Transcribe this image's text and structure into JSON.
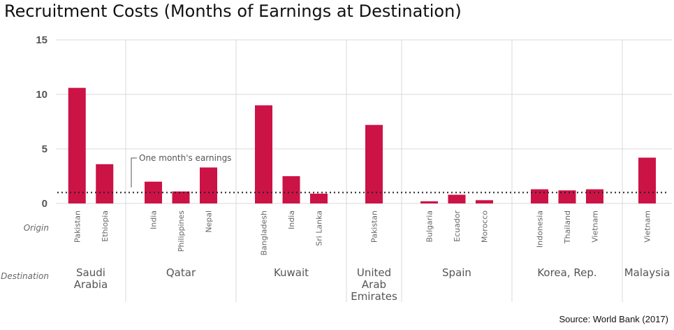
{
  "title": "Recruitment Costs (Months of Earnings at Destination)",
  "source": "Source: World Bank (2017)",
  "colors": {
    "bar": "#cc1346",
    "grid": "#d9d9d9",
    "reference": "#222222"
  },
  "chart_data": {
    "type": "bar",
    "ylim": [
      0,
      15
    ],
    "yticks": [
      0,
      5,
      10,
      15
    ],
    "grid": true,
    "row_labels": {
      "origin": "Origin",
      "destination": "Destination"
    },
    "reference_line": {
      "value": 1,
      "label": "One month's earnings"
    },
    "groups": [
      {
        "destination": [
          "Saudi",
          "Arabia"
        ],
        "bars": [
          {
            "origin": "Pakistan",
            "value": 10.6
          },
          {
            "origin": "Ethiopia",
            "value": 3.6
          }
        ]
      },
      {
        "destination": [
          "Qatar"
        ],
        "bars": [
          {
            "origin": "India",
            "value": 2.0
          },
          {
            "origin": "Philippines",
            "value": 1.1
          },
          {
            "origin": "Nepal",
            "value": 3.3
          }
        ]
      },
      {
        "destination": [
          "Kuwait"
        ],
        "bars": [
          {
            "origin": "Bangladesh",
            "value": 9.0
          },
          {
            "origin": "India",
            "value": 2.5
          },
          {
            "origin": "Sri Lanka",
            "value": 0.9
          }
        ]
      },
      {
        "destination": [
          "United",
          "Arab",
          "Emirates"
        ],
        "bars": [
          {
            "origin": "Pakistan",
            "value": 7.2
          }
        ]
      },
      {
        "destination": [
          "Spain"
        ],
        "bars": [
          {
            "origin": "Bulgaria",
            "value": 0.2
          },
          {
            "origin": "Ecuador",
            "value": 0.8
          },
          {
            "origin": "Morocco",
            "value": 0.3
          }
        ]
      },
      {
        "destination": [
          "Korea, Rep."
        ],
        "bars": [
          {
            "origin": "Indonesia",
            "value": 1.3
          },
          {
            "origin": "Thailand",
            "value": 1.2
          },
          {
            "origin": "Vietnam",
            "value": 1.3
          }
        ]
      },
      {
        "destination": [
          "Malaysia"
        ],
        "bars": [
          {
            "origin": "Vietnam",
            "value": 4.2
          }
        ]
      }
    ]
  }
}
